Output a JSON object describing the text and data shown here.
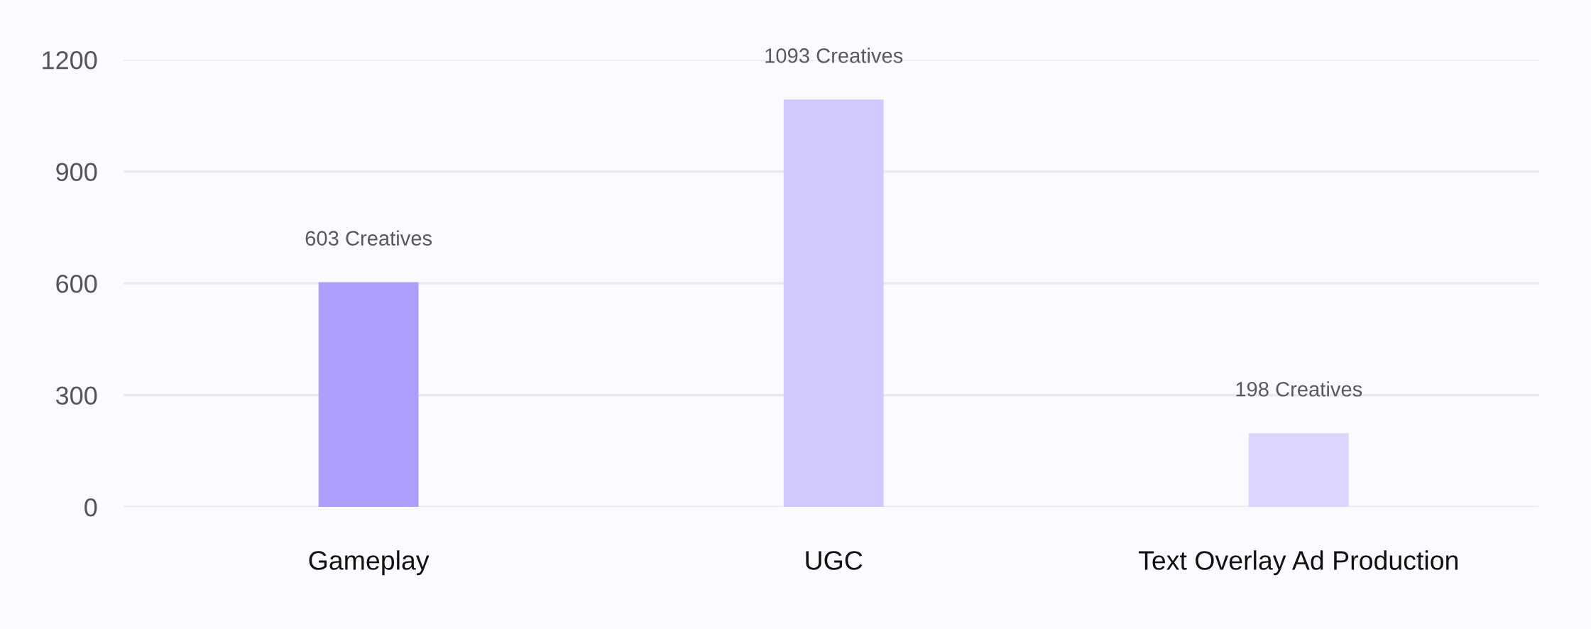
{
  "chart_data": {
    "type": "bar",
    "categories": [
      "Gameplay",
      "UGC",
      "Text Overlay Ad Production"
    ],
    "values": [
      603,
      1093,
      198
    ],
    "colors": [
      "#ac9ffc",
      "#d0c8fe",
      "#dcd5ff"
    ],
    "value_labels": [
      "603 Creatives",
      "1093 Creatives",
      "198 Creatives"
    ],
    "ylim": [
      0,
      1200
    ],
    "yticks": [
      0,
      300,
      600,
      900,
      1200
    ],
    "grid": "y",
    "legend": false
  }
}
